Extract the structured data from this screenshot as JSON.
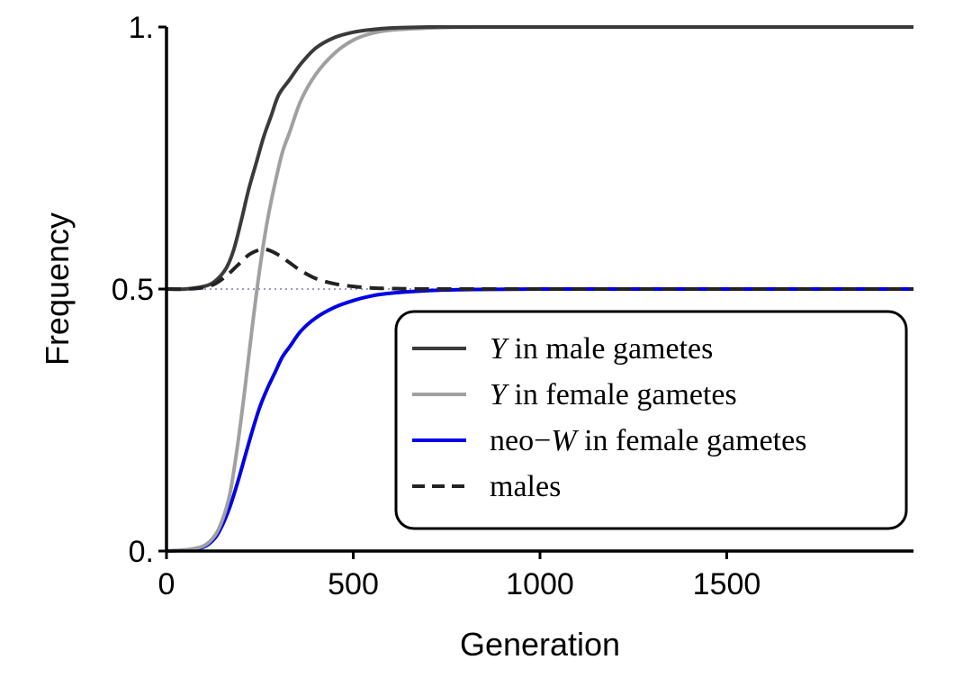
{
  "chart_data": {
    "type": "line",
    "xlabel": "Generation",
    "ylabel": "Frequency",
    "xlim": [
      0,
      2000
    ],
    "ylim": [
      0,
      1
    ],
    "x_ticks": [
      0,
      500,
      1000,
      1500
    ],
    "x_tick_labels": [
      "0",
      "500",
      "1000",
      "1500"
    ],
    "y_ticks": [
      0,
      0.5,
      1
    ],
    "y_tick_labels": [
      "0.",
      "0.5",
      "1."
    ],
    "grid": false,
    "legend_position": "lower-right",
    "reference_line": {
      "y": 0.5,
      "color": "#7b7bb8",
      "style": "dotted"
    },
    "series": [
      {
        "name": "Y in male gametes",
        "name_parts": [
          "Y",
          " in male gametes"
        ],
        "color": "#3a3a3a",
        "style": "solid",
        "x": [
          0,
          50,
          100,
          130,
          160,
          180,
          200,
          220,
          240,
          260,
          280,
          300,
          330,
          360,
          400,
          450,
          500,
          550,
          600,
          700,
          800,
          1000,
          1500,
          2000
        ],
        "y": [
          0.5,
          0.5,
          0.505,
          0.515,
          0.54,
          0.575,
          0.63,
          0.69,
          0.74,
          0.79,
          0.83,
          0.87,
          0.9,
          0.93,
          0.96,
          0.98,
          0.99,
          0.995,
          0.998,
          1.0,
          1.0,
          1.0,
          1.0,
          1.0
        ]
      },
      {
        "name": "Y in female gametes",
        "name_parts": [
          "Y",
          " in female gametes"
        ],
        "color": "#a0a0a0",
        "style": "solid",
        "x": [
          0,
          50,
          100,
          130,
          150,
          170,
          190,
          210,
          230,
          250,
          270,
          290,
          310,
          330,
          360,
          400,
          450,
          500,
          550,
          600,
          700,
          800,
          1000,
          1500,
          2000
        ],
        "y": [
          0.0,
          0.002,
          0.01,
          0.03,
          0.06,
          0.11,
          0.2,
          0.31,
          0.43,
          0.54,
          0.63,
          0.7,
          0.76,
          0.8,
          0.86,
          0.91,
          0.95,
          0.975,
          0.988,
          0.994,
          0.998,
          1.0,
          1.0,
          1.0,
          1.0
        ]
      },
      {
        "name": "neo−W in female gametes",
        "name_parts": [
          "neo−",
          "W",
          " in female gametes"
        ],
        "color": "#0000e6",
        "style": "solid",
        "x": [
          0,
          50,
          100,
          130,
          150,
          170,
          190,
          210,
          230,
          250,
          270,
          290,
          310,
          330,
          360,
          400,
          450,
          500,
          550,
          600,
          700,
          800,
          1000,
          1500,
          2000
        ],
        "y": [
          0.0,
          0.002,
          0.008,
          0.025,
          0.05,
          0.085,
          0.13,
          0.18,
          0.23,
          0.275,
          0.31,
          0.34,
          0.37,
          0.39,
          0.42,
          0.445,
          0.465,
          0.478,
          0.487,
          0.492,
          0.497,
          0.499,
          0.5,
          0.5,
          0.5
        ]
      },
      {
        "name": "males",
        "name_parts": [
          "males"
        ],
        "color": "#222222",
        "style": "dashed",
        "x": [
          0,
          50,
          100,
          130,
          160,
          190,
          220,
          250,
          270,
          300,
          330,
          360,
          400,
          450,
          500,
          550,
          600,
          700,
          800,
          1000,
          1500,
          2000
        ],
        "y": [
          0.5,
          0.5,
          0.503,
          0.51,
          0.525,
          0.545,
          0.565,
          0.575,
          0.575,
          0.565,
          0.55,
          0.535,
          0.52,
          0.51,
          0.505,
          0.502,
          0.501,
          0.5,
          0.5,
          0.5,
          0.5,
          0.5
        ]
      }
    ]
  }
}
